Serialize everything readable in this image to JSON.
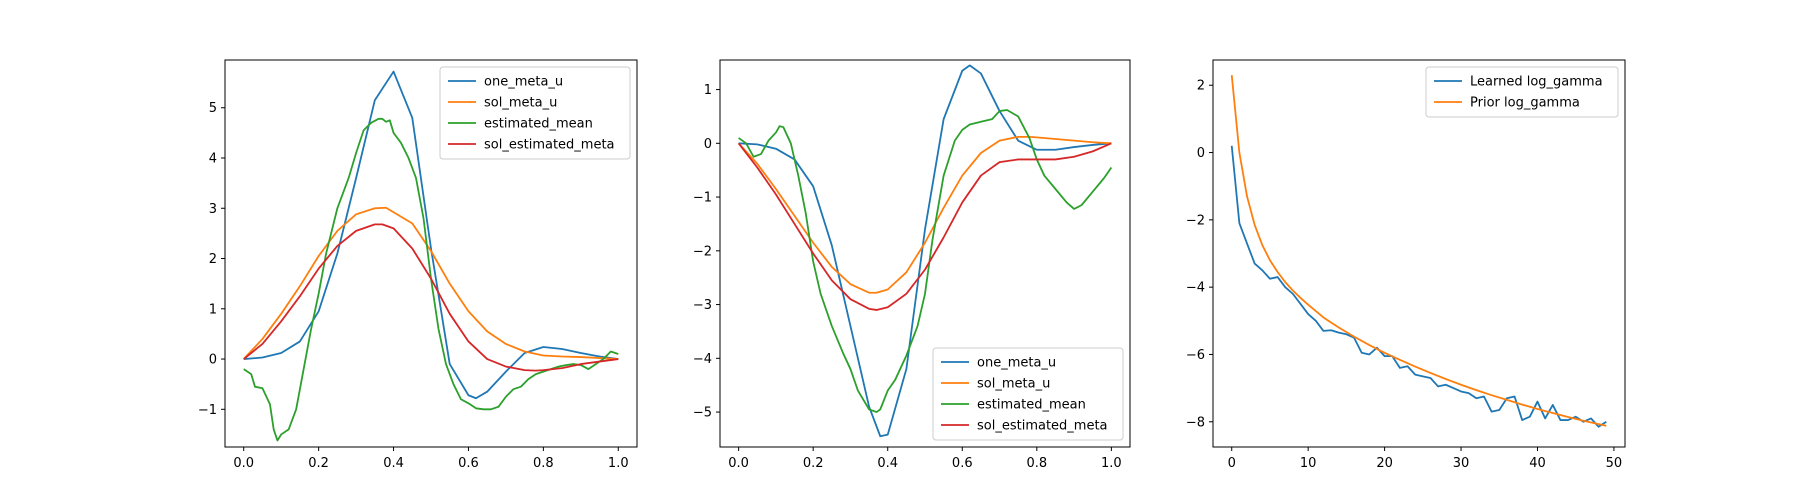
{
  "chart_data": [
    {
      "type": "line",
      "xlim": [
        -0.05,
        1.05
      ],
      "ylim": [
        -1.75,
        5.95
      ],
      "xticks": [
        0.0,
        0.2,
        0.4,
        0.6,
        0.8,
        1.0
      ],
      "xtick_labels": [
        "0.0",
        "0.2",
        "0.4",
        "0.6",
        "0.8",
        "1.0"
      ],
      "yticks": [
        -1,
        0,
        1,
        2,
        3,
        4,
        5
      ],
      "ytick_labels": [
        "−1",
        "0",
        "1",
        "2",
        "3",
        "4",
        "5"
      ],
      "legend_position": "top-right",
      "series": [
        {
          "name": "one_meta_u",
          "color": "#1f77b4",
          "x": [
            0,
            0.05,
            0.1,
            0.15,
            0.2,
            0.25,
            0.3,
            0.35,
            0.4,
            0.45,
            0.5,
            0.55,
            0.6,
            0.62,
            0.65,
            0.7,
            0.75,
            0.8,
            0.85,
            0.9,
            0.95,
            1.0
          ],
          "y": [
            0,
            0.03,
            0.12,
            0.35,
            0.95,
            2.1,
            3.6,
            5.15,
            5.72,
            4.8,
            2.2,
            -0.1,
            -0.72,
            -0.78,
            -0.65,
            -0.25,
            0.12,
            0.24,
            0.2,
            0.12,
            0.05,
            0.0
          ]
        },
        {
          "name": "sol_meta_u",
          "color": "#ff7f0e",
          "x": [
            0,
            0.05,
            0.1,
            0.15,
            0.2,
            0.25,
            0.3,
            0.35,
            0.38,
            0.45,
            0.5,
            0.55,
            0.6,
            0.65,
            0.7,
            0.75,
            0.8,
            0.85,
            0.9,
            0.95,
            1.0
          ],
          "y": [
            0,
            0.4,
            0.9,
            1.45,
            2.05,
            2.55,
            2.88,
            3.0,
            3.01,
            2.7,
            2.15,
            1.5,
            0.95,
            0.55,
            0.3,
            0.15,
            0.07,
            0.05,
            0.04,
            0.02,
            0.0
          ]
        },
        {
          "name": "estimated_mean",
          "color": "#2ca02c",
          "x": [
            0,
            0.02,
            0.03,
            0.05,
            0.07,
            0.08,
            0.09,
            0.1,
            0.12,
            0.14,
            0.16,
            0.18,
            0.2,
            0.22,
            0.25,
            0.28,
            0.3,
            0.32,
            0.34,
            0.36,
            0.37,
            0.38,
            0.39,
            0.4,
            0.42,
            0.44,
            0.46,
            0.48,
            0.5,
            0.52,
            0.54,
            0.56,
            0.58,
            0.6,
            0.62,
            0.64,
            0.66,
            0.68,
            0.7,
            0.72,
            0.74,
            0.76,
            0.78,
            0.8,
            0.82,
            0.84,
            0.86,
            0.88,
            0.9,
            0.92,
            0.94,
            0.96,
            0.98,
            1.0
          ],
          "y": [
            -0.2,
            -0.3,
            -0.55,
            -0.58,
            -0.9,
            -1.4,
            -1.62,
            -1.5,
            -1.4,
            -1.0,
            -0.2,
            0.6,
            1.3,
            2.1,
            3.0,
            3.6,
            4.1,
            4.55,
            4.7,
            4.78,
            4.78,
            4.72,
            4.75,
            4.5,
            4.3,
            4.0,
            3.6,
            2.8,
            1.6,
            0.6,
            -0.1,
            -0.5,
            -0.8,
            -0.88,
            -0.98,
            -1.0,
            -1.0,
            -0.95,
            -0.75,
            -0.6,
            -0.55,
            -0.4,
            -0.3,
            -0.25,
            -0.2,
            -0.15,
            -0.12,
            -0.1,
            -0.12,
            -0.2,
            -0.1,
            0.0,
            0.15,
            0.1
          ]
        },
        {
          "name": "sol_estimated_meta",
          "color": "#d62728",
          "x": [
            0,
            0.05,
            0.1,
            0.15,
            0.2,
            0.25,
            0.3,
            0.35,
            0.37,
            0.4,
            0.45,
            0.5,
            0.55,
            0.6,
            0.65,
            0.7,
            0.75,
            0.78,
            0.8,
            0.85,
            0.9,
            0.95,
            1.0
          ],
          "y": [
            0,
            0.3,
            0.75,
            1.25,
            1.8,
            2.25,
            2.55,
            2.68,
            2.68,
            2.6,
            2.2,
            1.6,
            0.9,
            0.35,
            0.0,
            -0.15,
            -0.22,
            -0.23,
            -0.22,
            -0.18,
            -0.1,
            -0.05,
            0.0
          ]
        }
      ]
    },
    {
      "type": "line",
      "xlim": [
        -0.05,
        1.05
      ],
      "ylim": [
        -5.65,
        1.55
      ],
      "xticks": [
        0.0,
        0.2,
        0.4,
        0.6,
        0.8,
        1.0
      ],
      "xtick_labels": [
        "0.0",
        "0.2",
        "0.4",
        "0.6",
        "0.8",
        "1.0"
      ],
      "yticks": [
        -5,
        -4,
        -3,
        -2,
        -1,
        0,
        1
      ],
      "ytick_labels": [
        "−5",
        "−4",
        "−3",
        "−2",
        "−1",
        "0",
        "1"
      ],
      "legend_position": "bottom-right",
      "series": [
        {
          "name": "one_meta_u",
          "color": "#1f77b4",
          "x": [
            0,
            0.05,
            0.1,
            0.15,
            0.2,
            0.25,
            0.3,
            0.35,
            0.38,
            0.4,
            0.45,
            0.5,
            0.55,
            0.6,
            0.62,
            0.65,
            0.7,
            0.75,
            0.8,
            0.85,
            0.9,
            0.95,
            1.0
          ],
          "y": [
            0,
            -0.02,
            -0.1,
            -0.3,
            -0.8,
            -1.9,
            -3.4,
            -4.9,
            -5.45,
            -5.42,
            -4.2,
            -1.6,
            0.45,
            1.35,
            1.45,
            1.3,
            0.6,
            0.05,
            -0.12,
            -0.12,
            -0.07,
            -0.03,
            0.0
          ]
        },
        {
          "name": "sol_meta_u",
          "color": "#ff7f0e",
          "x": [
            0,
            0.05,
            0.1,
            0.15,
            0.2,
            0.25,
            0.3,
            0.35,
            0.37,
            0.4,
            0.45,
            0.5,
            0.55,
            0.6,
            0.65,
            0.7,
            0.75,
            0.78,
            0.8,
            0.85,
            0.9,
            0.95,
            1.0
          ],
          "y": [
            0,
            -0.38,
            -0.85,
            -1.35,
            -1.85,
            -2.3,
            -2.62,
            -2.78,
            -2.78,
            -2.72,
            -2.4,
            -1.85,
            -1.2,
            -0.6,
            -0.18,
            0.05,
            0.12,
            0.12,
            0.11,
            0.08,
            0.05,
            0.02,
            0.0
          ]
        },
        {
          "name": "estimated_mean",
          "color": "#2ca02c",
          "x": [
            0,
            0.02,
            0.04,
            0.06,
            0.08,
            0.1,
            0.11,
            0.12,
            0.14,
            0.16,
            0.18,
            0.2,
            0.22,
            0.25,
            0.28,
            0.3,
            0.32,
            0.35,
            0.37,
            0.38,
            0.4,
            0.42,
            0.45,
            0.48,
            0.5,
            0.52,
            0.55,
            0.58,
            0.6,
            0.62,
            0.65,
            0.68,
            0.7,
            0.72,
            0.75,
            0.78,
            0.8,
            0.82,
            0.85,
            0.88,
            0.9,
            0.92,
            0.95,
            0.98,
            1.0
          ],
          "y": [
            0.1,
            0.0,
            -0.25,
            -0.2,
            0.05,
            0.2,
            0.32,
            0.3,
            0.0,
            -0.6,
            -1.3,
            -2.2,
            -2.8,
            -3.4,
            -3.9,
            -4.2,
            -4.6,
            -4.95,
            -5.0,
            -4.95,
            -4.6,
            -4.4,
            -3.95,
            -3.4,
            -2.8,
            -1.8,
            -0.6,
            0.05,
            0.25,
            0.35,
            0.4,
            0.45,
            0.6,
            0.62,
            0.5,
            0.1,
            -0.3,
            -0.6,
            -0.85,
            -1.1,
            -1.22,
            -1.15,
            -0.9,
            -0.65,
            -0.45
          ]
        },
        {
          "name": "sol_estimated_meta",
          "color": "#d62728",
          "x": [
            0,
            0.05,
            0.1,
            0.15,
            0.2,
            0.25,
            0.3,
            0.35,
            0.37,
            0.4,
            0.45,
            0.5,
            0.55,
            0.6,
            0.65,
            0.7,
            0.75,
            0.8,
            0.85,
            0.9,
            0.95,
            1.0
          ],
          "y": [
            0,
            -0.45,
            -0.95,
            -1.5,
            -2.05,
            -2.55,
            -2.9,
            -3.08,
            -3.1,
            -3.05,
            -2.8,
            -2.35,
            -1.75,
            -1.1,
            -0.6,
            -0.35,
            -0.3,
            -0.3,
            -0.3,
            -0.25,
            -0.15,
            0.0
          ]
        }
      ]
    },
    {
      "type": "line",
      "xlim": [
        -2.45,
        51.45
      ],
      "ylim": [
        -8.75,
        2.75
      ],
      "xticks": [
        0,
        10,
        20,
        30,
        40,
        50
      ],
      "xtick_labels": [
        "0",
        "10",
        "20",
        "30",
        "40",
        "50"
      ],
      "yticks": [
        -8,
        -6,
        -4,
        -2,
        0,
        2
      ],
      "ytick_labels": [
        "−8",
        "−6",
        "−4",
        "−2",
        "0",
        "2"
      ],
      "legend_position": "top-right",
      "series": [
        {
          "name": "Learned log_gamma",
          "color": "#1f77b4",
          "x": [
            0,
            1,
            2,
            3,
            4,
            5,
            6,
            7,
            8,
            9,
            10,
            11,
            12,
            13,
            14,
            15,
            16,
            17,
            18,
            19,
            20,
            21,
            22,
            23,
            24,
            25,
            26,
            27,
            28,
            29,
            30,
            31,
            32,
            33,
            34,
            35,
            36,
            37,
            38,
            39,
            40,
            41,
            42,
            43,
            44,
            45,
            46,
            47,
            48,
            49
          ],
          "y": [
            0.2,
            -2.1,
            -2.7,
            -3.3,
            -3.5,
            -3.75,
            -3.7,
            -4.0,
            -4.2,
            -4.5,
            -4.8,
            -5.0,
            -5.3,
            -5.28,
            -5.35,
            -5.4,
            -5.5,
            -5.95,
            -6.0,
            -5.8,
            -6.05,
            -6.05,
            -6.4,
            -6.35,
            -6.6,
            -6.65,
            -6.7,
            -6.95,
            -6.9,
            -7.0,
            -7.1,
            -7.15,
            -7.3,
            -7.25,
            -7.7,
            -7.65,
            -7.3,
            -7.25,
            -7.95,
            -7.85,
            -7.4,
            -7.9,
            -7.5,
            -7.95,
            -7.95,
            -7.85,
            -8.0,
            -7.9,
            -8.15,
            -8.0
          ]
        },
        {
          "name": "Prior log_gamma",
          "color": "#ff7f0e",
          "x": [
            0,
            1,
            2,
            3,
            4,
            5,
            6,
            7,
            8,
            9,
            10,
            12,
            14,
            16,
            18,
            20,
            22,
            24,
            26,
            28,
            30,
            32,
            34,
            36,
            38,
            40,
            42,
            44,
            46,
            48,
            49
          ],
          "y": [
            2.3,
            0.0,
            -1.3,
            -2.15,
            -2.75,
            -3.2,
            -3.55,
            -3.85,
            -4.1,
            -4.32,
            -4.52,
            -4.9,
            -5.2,
            -5.47,
            -5.72,
            -5.95,
            -6.16,
            -6.36,
            -6.55,
            -6.73,
            -6.9,
            -7.06,
            -7.21,
            -7.35,
            -7.49,
            -7.62,
            -7.74,
            -7.86,
            -7.97,
            -8.07,
            -8.12
          ]
        }
      ]
    }
  ]
}
